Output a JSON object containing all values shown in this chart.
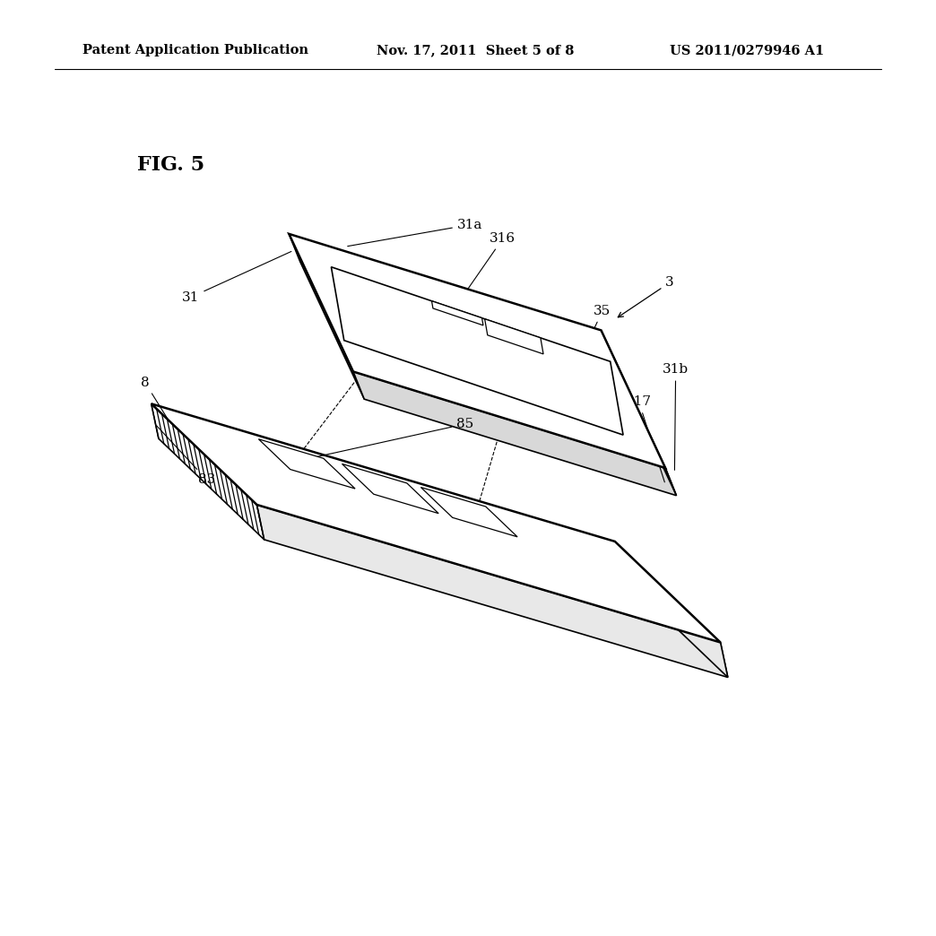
{
  "background_color": "#ffffff",
  "header_text": "Patent Application Publication",
  "header_date": "Nov. 17, 2011  Sheet 5 of 8",
  "header_patent": "US 2011/0279946 A1",
  "fig_label": "FIG. 5",
  "line_color": "#000000",
  "lw": 1.2,
  "lw_thick": 1.8
}
